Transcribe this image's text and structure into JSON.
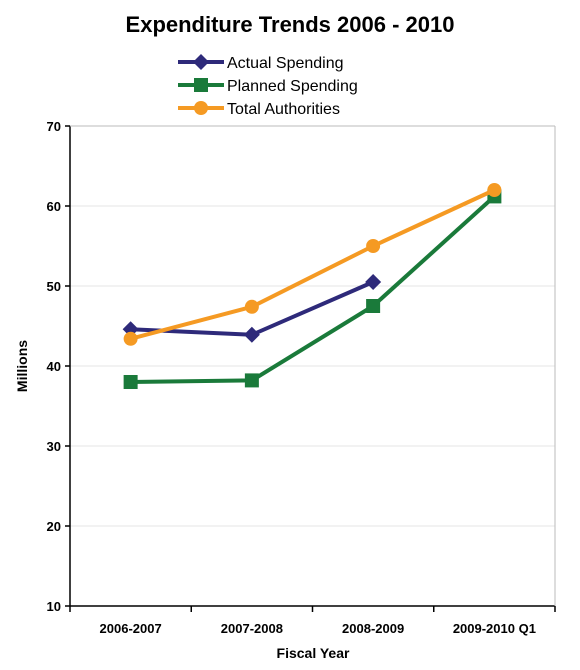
{
  "chart_data": {
    "type": "line",
    "title": "Expenditure Trends 2006 - 2010",
    "xlabel": "Fiscal Year",
    "ylabel": "Millions",
    "categories": [
      "2006-2007",
      "2007-2008",
      "2008-2009",
      "2009-2010 Q1"
    ],
    "ylim": [
      10,
      70
    ],
    "yticks": [
      10,
      20,
      30,
      40,
      50,
      60,
      70
    ],
    "grid": true,
    "legend_position": "top",
    "series": [
      {
        "name": "Actual Spending",
        "color": "#2e2a7a",
        "marker": "diamond",
        "values": [
          44.6,
          43.9,
          50.5,
          null
        ]
      },
      {
        "name": "Planned Spending",
        "color": "#1a7a3a",
        "marker": "square",
        "values": [
          38.0,
          38.2,
          47.5,
          61.2
        ]
      },
      {
        "name": "Total Authorities",
        "color": "#f59a23",
        "marker": "circle",
        "values": [
          43.4,
          47.4,
          55.0,
          62.0
        ]
      }
    ]
  }
}
